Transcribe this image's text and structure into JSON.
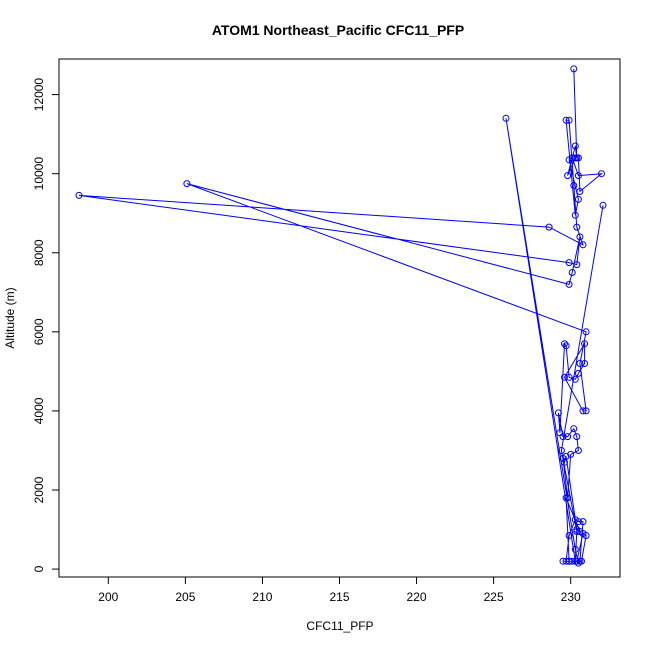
{
  "chart_data": {
    "type": "line",
    "title": "ATOM1 Northeast_Pacific CFC11_PFP",
    "xlabel": "CFC11_PFP",
    "ylabel": "Altitude (m)",
    "xlim": [
      196.8,
      233.2
    ],
    "ylim": [
      -200,
      12900
    ],
    "x_ticks": [
      200,
      205,
      210,
      215,
      220,
      225,
      230
    ],
    "y_ticks": [
      0,
      2000,
      4000,
      6000,
      8000,
      10000,
      12000
    ],
    "marker": "open-circle",
    "grid": false,
    "color": "#0000ff",
    "series": [
      {
        "x": [
          230.2,
          230.4,
          230.3,
          229.8,
          230.3,
          230.5,
          230.6,
          232.0,
          230.5,
          230.1,
          229.9,
          230.5,
          230.3,
          229.7,
          229.9,
          230.2,
          230.4,
          230.8,
          228.6,
          198.1,
          229.9,
          230.4,
          230.6,
          230.1,
          229.9,
          205.1,
          231.0,
          230.6,
          231.0,
          230.8,
          229.6,
          230.9,
          230.9,
          230.5,
          230.3,
          229.9,
          229.7,
          229.6,
          229.3,
          229.2,
          229.5,
          229.8,
          230.2,
          230.4,
          230.5,
          230.0,
          229.8,
          229.5,
          229.6,
          229.7,
          230.4,
          230.6,
          229.7,
          229.9,
          230.1,
          229.7,
          229.9,
          230.3,
          230.5,
          230.8,
          230.6,
          229.9,
          229.5,
          230.4,
          230.8,
          231.0,
          230.7,
          230.5,
          230.3,
          225.8,
          230.3,
          230.4,
          229.4,
          232.1
        ],
        "y": [
          12650,
          10400,
          10700,
          9950,
          10400,
          10400,
          9550,
          10000,
          9950,
          10400,
          10350,
          9350,
          8950,
          11350,
          11350,
          9700,
          8650,
          8200,
          8650,
          9450,
          7750,
          7700,
          8400,
          7500,
          7200,
          9750,
          6000,
          5200,
          4000,
          4000,
          4850,
          5700,
          5200,
          4950,
          4800,
          4850,
          5650,
          5700,
          3450,
          3950,
          3350,
          3350,
          3550,
          3350,
          3000,
          2900,
          1800,
          2800,
          2700,
          2850,
          1000,
          950,
          1800,
          200,
          200,
          200,
          850,
          1250,
          1200,
          1200,
          200,
          200,
          200,
          200,
          900,
          850,
          200,
          150,
          500,
          11400,
          200,
          950,
          3000,
          9200
        ]
      }
    ]
  }
}
